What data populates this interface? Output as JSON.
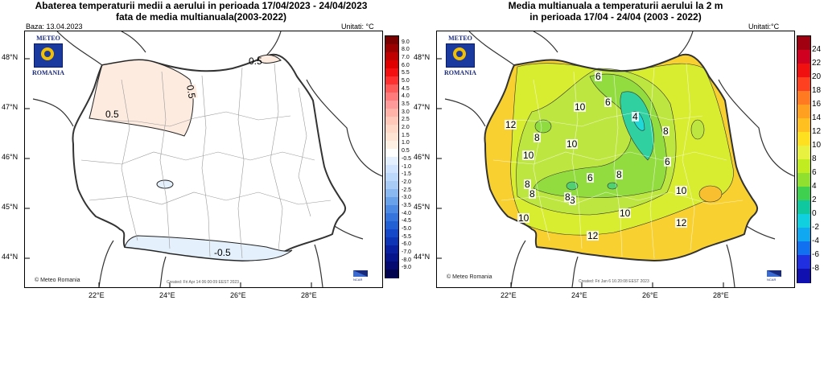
{
  "left": {
    "title_line1": "Abaterea temperaturii medii a aerului in perioada 17/04/2023 - 24/04/2023",
    "title_line2": "fata de media multianuala(2003-2022)",
    "base": "Baza: 13.04.2023",
    "units": "Unitati: °C",
    "logo_top": "METEO",
    "logo_bottom": "ROMANIA",
    "copyright": "© Meteo Romania",
    "created": "Created: Fri Apr 14 06:00:09 EEST 2023",
    "ncar": "NCAR",
    "lat_labels": [
      "48°N",
      "47°N",
      "46°N",
      "45°N",
      "44°N"
    ],
    "lon_labels": [
      "22°E",
      "24°E",
      "26°E",
      "28°E"
    ],
    "contour_labels": [
      "-0.5",
      "0.5",
      "0.5",
      "0.5"
    ],
    "colorbar": [
      "9.0",
      "8.0",
      "7.0",
      "6.0",
      "5.5",
      "5.0",
      "4.5",
      "4.0",
      "3.5",
      "3.0",
      "2.5",
      "2.0",
      "1.5",
      "1.0",
      "0.5",
      "-0.5",
      "-1.0",
      "-1.5",
      "-2.0",
      "-2.5",
      "-3.0",
      "-3.5",
      "-4.0",
      "-4.5",
      "-5.0",
      "-5.5",
      "-6.0",
      "-7.0",
      "-8.0",
      "-9.0"
    ],
    "colors": [
      "#7a0000",
      "#9a0000",
      "#c00000",
      "#e00000",
      "#f41010",
      "#ff3030",
      "#ff5a5a",
      "#ff7a7a",
      "#ff9a9a",
      "#ffb2a8",
      "#ffc8b8",
      "#ffd8c8",
      "#ffe4d4",
      "#fff0e4",
      "#ffffff",
      "#e4f0ff",
      "#d0e4ff",
      "#bcd8fa",
      "#a8cbf5",
      "#8ab8f0",
      "#6aa2ea",
      "#4c8ae4",
      "#3474dc",
      "#2060d4",
      "#1448c8",
      "#0c34b4",
      "#0820a0",
      "#06148c",
      "#040a70",
      "#02044f"
    ]
  },
  "right": {
    "title_line1": "Media multianuala a temperaturii aerului la 2 m",
    "title_line2": "in perioada 17/04 - 24/04 (2003 - 2022)",
    "units": "Unitati:°C",
    "logo_top": "METEO",
    "logo_bottom": "ROMANIA",
    "copyright": "© Meteo Romania",
    "created": "Created: Fri Jan  6 16:20:08 EEST 2023",
    "ncar": "NCAR",
    "lat_labels": [
      "48°N",
      "47°N",
      "46°N",
      "45°N",
      "44°N"
    ],
    "lon_labels": [
      "22°E",
      "24°E",
      "26°E",
      "28°E"
    ],
    "contour_labels": [
      "6",
      "10",
      "6",
      "4",
      "8",
      "8",
      "12",
      "10",
      "10",
      "8",
      "6",
      "8",
      "8",
      "8",
      "6",
      "10",
      "10",
      "10",
      "12",
      "12",
      "8"
    ],
    "colorbar": [
      "24",
      "22",
      "20",
      "18",
      "16",
      "14",
      "12",
      "10",
      "8",
      "6",
      "4",
      "2",
      "0",
      "-2",
      "-4",
      "-6",
      "-8"
    ],
    "colors": [
      "#a00010",
      "#d00020",
      "#f01010",
      "#ff4020",
      "#ff7a20",
      "#ffa020",
      "#ffc020",
      "#ffe020",
      "#e8f040",
      "#c0ec20",
      "#90e030",
      "#40d050",
      "#10c8a0",
      "#10d0e0",
      "#10a8f0",
      "#1070f0",
      "#2030e0",
      "#1010b0"
    ]
  }
}
